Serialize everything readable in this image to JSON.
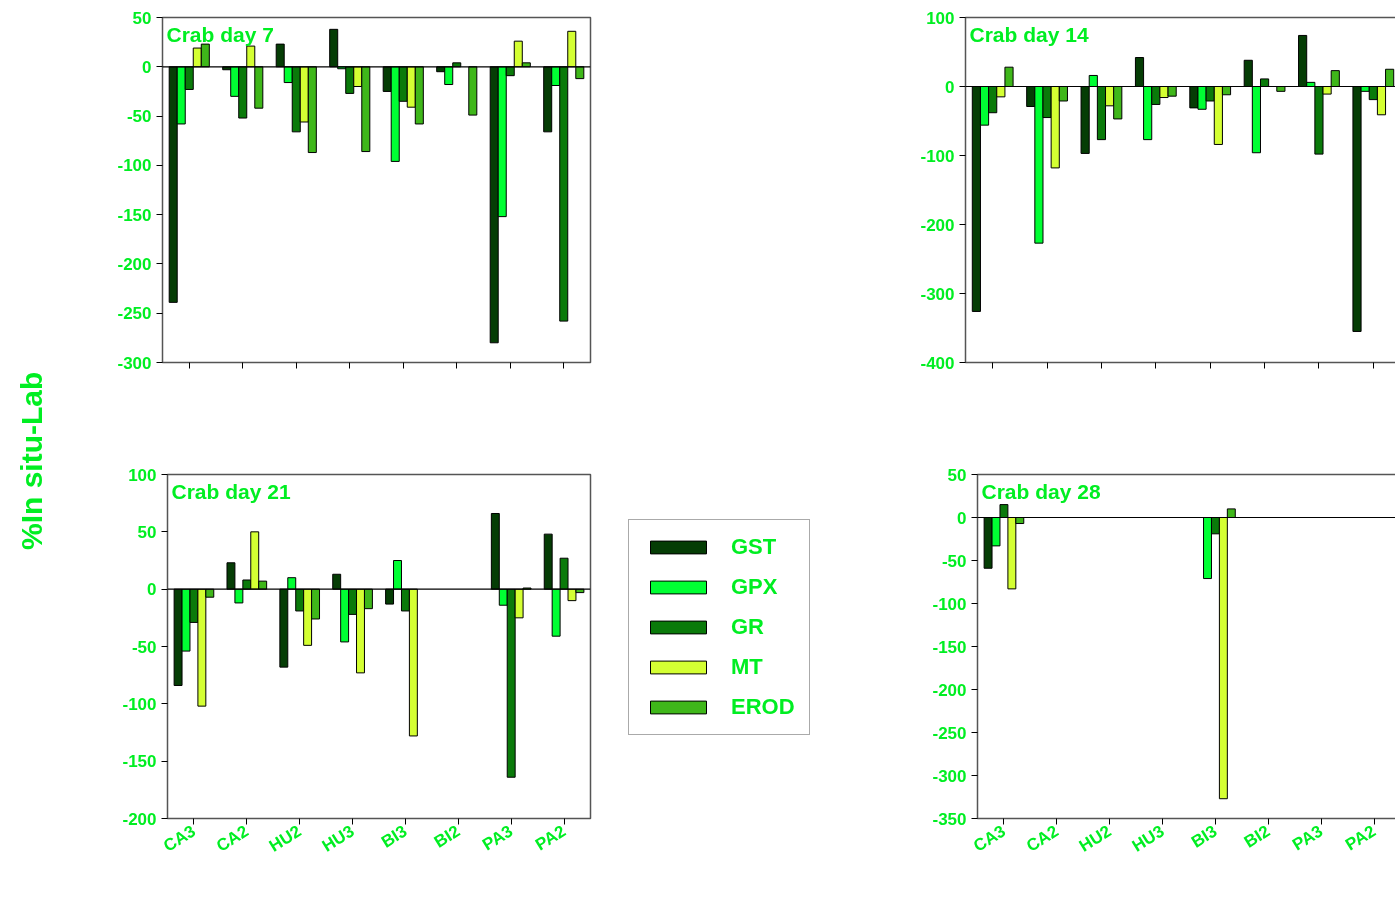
{
  "chart_data": [
    {
      "type": "bar",
      "title": "Crab day 7",
      "categories": [
        null,
        null,
        null,
        null,
        null,
        null,
        null,
        null
      ],
      "ylim": [
        -300,
        50
      ],
      "yticks": [
        -300,
        -250,
        -200,
        -150,
        -100,
        -50,
        0,
        50
      ],
      "tick_labels": "y",
      "grid": false,
      "ref_lines": [
        {
          "axis": "y",
          "value": 0
        }
      ],
      "series": [
        {
          "color": "#053d05",
          "values": [
            -239,
            -3,
            23,
            38,
            -25,
            -5,
            -280,
            -66
          ]
        },
        {
          "color": "#00ff33",
          "values": [
            -58,
            -30,
            -16,
            -2,
            -96,
            -18,
            -152,
            -19
          ]
        },
        {
          "color": "#0a7a0a",
          "values": [
            -23,
            -52,
            -66,
            -27,
            -35,
            4,
            -9,
            -258
          ]
        },
        {
          "color": "#d4ff33",
          "values": [
            19,
            21,
            -56,
            -20,
            -41,
            null,
            26,
            36
          ]
        },
        {
          "color": "#3fb71a",
          "values": [
            23,
            -42,
            -87,
            -86,
            -58,
            -49,
            4,
            -12
          ]
        }
      ]
    },
    {
      "type": "bar",
      "title": "Crab day 14",
      "categories": [
        null,
        null,
        null,
        null,
        null,
        null,
        null,
        null
      ],
      "ylim": [
        -400,
        100
      ],
      "yticks": [
        -400,
        -300,
        -200,
        -100,
        0,
        100
      ],
      "tick_labels": "y",
      "grid": false,
      "ref_lines": [
        {
          "axis": "y",
          "value": 0
        }
      ],
      "series": [
        {
          "color": "#053d05",
          "values": [
            -326,
            -29,
            -97,
            42,
            -31,
            38,
            74,
            -355
          ]
        },
        {
          "color": "#00ff33",
          "values": [
            -56,
            -227,
            16,
            -77,
            -33,
            -96,
            6,
            -7
          ]
        },
        {
          "color": "#0a7a0a",
          "values": [
            -38,
            -45,
            -77,
            -26,
            -21,
            11,
            -98,
            -19
          ]
        },
        {
          "color": "#d4ff33",
          "values": [
            -15,
            -118,
            -28,
            -16,
            -84,
            null,
            -11,
            -41
          ]
        },
        {
          "color": "#3fb71a",
          "values": [
            28,
            -21,
            -47,
            -14,
            -12,
            -7,
            23,
            25
          ]
        }
      ]
    },
    {
      "type": "bar",
      "title": "Crab day 21",
      "ylabel": "%In situ-Lab",
      "categories": [
        "CA3",
        "CA2",
        "HU2",
        "HU3",
        "BI3",
        "BI2",
        "PA3",
        "PA2"
      ],
      "ylim": [
        -200,
        100
      ],
      "yticks": [
        -200,
        -150,
        -100,
        -50,
        0,
        50,
        100
      ],
      "grid": false,
      "ref_lines": [
        {
          "axis": "y",
          "value": 0
        }
      ],
      "series": [
        {
          "color": "#053d05",
          "values": [
            -84,
            23,
            -68,
            13,
            -13,
            null,
            66,
            48
          ]
        },
        {
          "color": "#00ff33",
          "values": [
            -54,
            -12,
            10,
            -46,
            25,
            null,
            -14,
            -41
          ]
        },
        {
          "color": "#0a7a0a",
          "values": [
            -29,
            8,
            -19,
            -22,
            -19,
            null,
            -164,
            27
          ]
        },
        {
          "color": "#d4ff33",
          "values": [
            -102,
            50,
            -49,
            -73,
            -128,
            null,
            -25,
            -10
          ]
        },
        {
          "color": "#3fb71a",
          "values": [
            -7,
            7,
            -26,
            -17,
            null,
            null,
            1,
            -3
          ]
        }
      ]
    },
    {
      "type": "bar",
      "title": "Crab day 28",
      "categories": [
        "CA3",
        "CA2",
        "HU2",
        "HU3",
        "BI3",
        "BI2",
        "PA3",
        "PA2"
      ],
      "ylim": [
        -350,
        50
      ],
      "yticks": [
        -350,
        -300,
        -250,
        -200,
        -150,
        -100,
        -50,
        0,
        50
      ],
      "grid": false,
      "legend": "left",
      "ref_lines": [
        {
          "axis": "y",
          "value": 0
        }
      ],
      "series": [
        {
          "name": "GST",
          "color": "#053d05",
          "values": [
            -59,
            null,
            null,
            null,
            null,
            null,
            null,
            null
          ]
        },
        {
          "name": "GPX",
          "color": "#00ff33",
          "values": [
            -33,
            null,
            null,
            null,
            -71,
            null,
            null,
            null
          ]
        },
        {
          "name": "GR",
          "color": "#0a7a0a",
          "values": [
            15,
            null,
            null,
            null,
            -19,
            null,
            null,
            null
          ]
        },
        {
          "name": "MT",
          "color": "#d4ff33",
          "values": [
            -83,
            null,
            null,
            null,
            -327,
            null,
            null,
            null
          ]
        },
        {
          "name": "EROD",
          "color": "#3fb71a",
          "values": [
            -7,
            null,
            null,
            null,
            10,
            null,
            null,
            null
          ]
        }
      ]
    }
  ]
}
